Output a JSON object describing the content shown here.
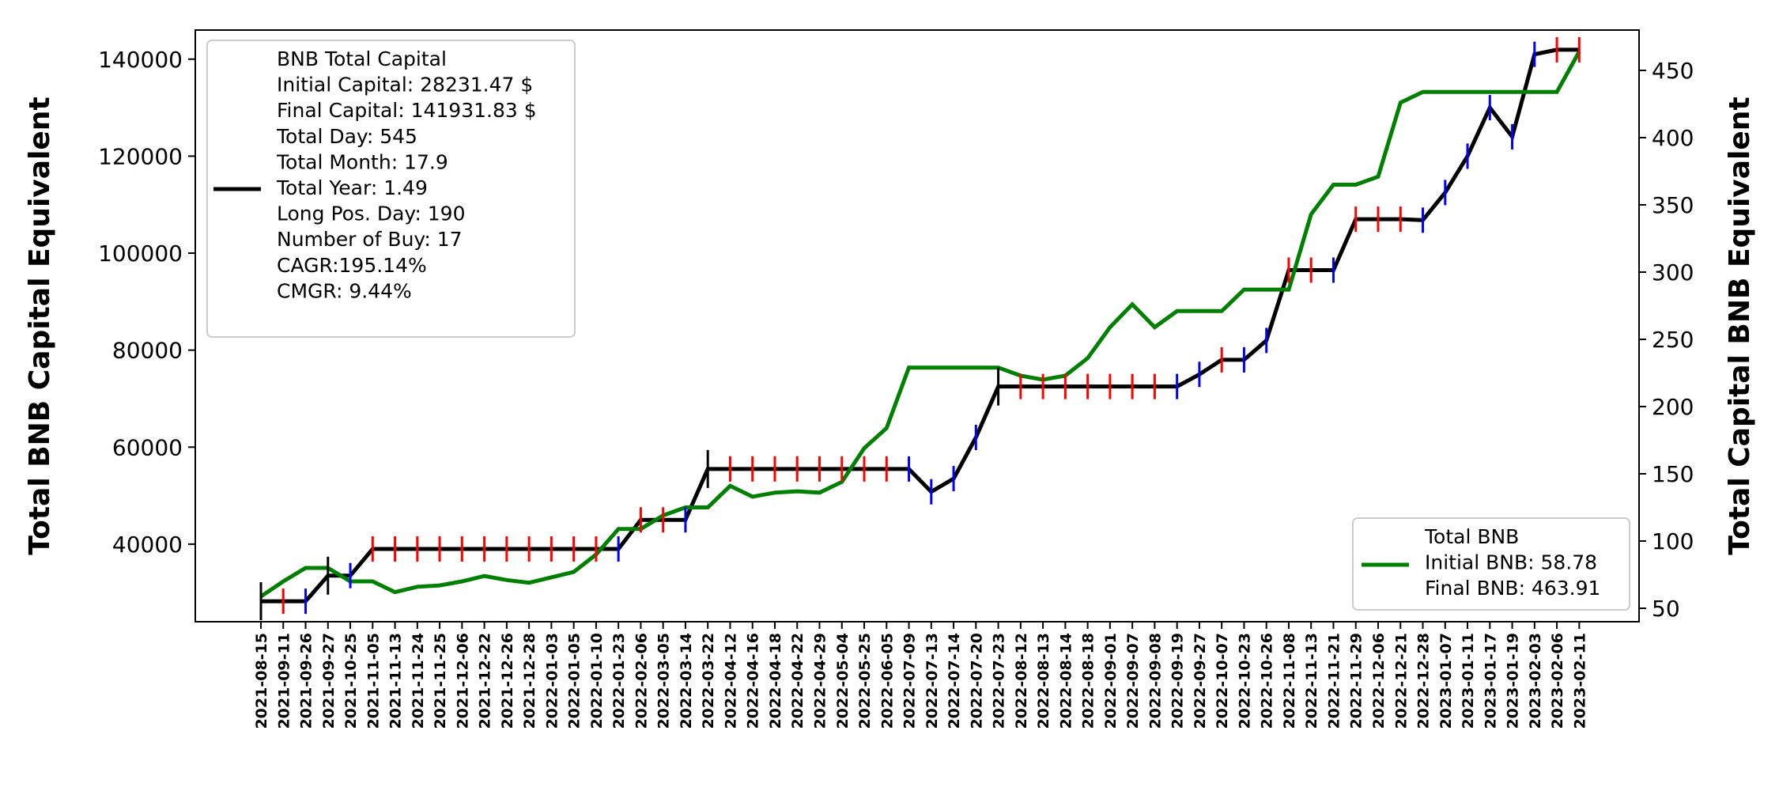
{
  "chart_data": {
    "type": "line",
    "x": [
      "2021-08-15",
      "2021-09-11",
      "2021-09-26",
      "2021-09-27",
      "2021-10-25",
      "2021-11-05",
      "2021-11-13",
      "2021-11-24",
      "2021-11-25",
      "2021-12-06",
      "2021-12-22",
      "2021-12-26",
      "2021-12-28",
      "2022-01-03",
      "2022-01-05",
      "2022-01-10",
      "2022-01-23",
      "2022-02-06",
      "2022-03-05",
      "2022-03-14",
      "2022-03-22",
      "2022-04-12",
      "2022-04-16",
      "2022-04-18",
      "2022-04-22",
      "2022-04-29",
      "2022-05-04",
      "2022-05-25",
      "2022-06-05",
      "2022-07-09",
      "2022-07-13",
      "2022-07-14",
      "2022-07-20",
      "2022-07-23",
      "2022-08-12",
      "2022-08-13",
      "2022-08-14",
      "2022-08-18",
      "2022-09-01",
      "2022-09-07",
      "2022-09-08",
      "2022-09-19",
      "2022-09-27",
      "2022-10-07",
      "2022-10-23",
      "2022-10-26",
      "2022-11-08",
      "2022-11-13",
      "2022-11-21",
      "2022-11-29",
      "2022-12-06",
      "2022-12-21",
      "2022-12-28",
      "2023-01-07",
      "2023-01-11",
      "2023-01-17",
      "2023-01-19",
      "2023-02-03",
      "2023-02-06",
      "2023-02-11"
    ],
    "series": [
      {
        "name": "BNB Total Capital",
        "axis": "left",
        "color": "#000000",
        "values": [
          28231,
          28231,
          28231,
          33500,
          33500,
          39000,
          39000,
          39000,
          39000,
          39000,
          39000,
          39000,
          39000,
          39000,
          39000,
          39000,
          39000,
          45000,
          45000,
          45000,
          55500,
          55500,
          55500,
          55500,
          55500,
          55500,
          55500,
          55500,
          55500,
          55500,
          50800,
          53500,
          62000,
          72500,
          72500,
          72500,
          72500,
          72500,
          72500,
          72500,
          72500,
          72500,
          75000,
          78000,
          78000,
          82000,
          96500,
          96500,
          96500,
          107000,
          107000,
          107000,
          106800,
          112500,
          120000,
          130000,
          124000,
          141000,
          141932,
          141932
        ],
        "markers": [
          "black",
          "red",
          "blue",
          "black",
          "blue",
          "red",
          "red",
          "red",
          "red",
          "red",
          "red",
          "red",
          "red",
          "red",
          "red",
          "red",
          "blue",
          "red",
          "red",
          "blue",
          "black",
          "red",
          "red",
          "red",
          "red",
          "red",
          "red",
          "red",
          "red",
          "blue",
          "blue",
          "blue",
          "blue",
          "black",
          "red",
          "red",
          "red",
          "red",
          "red",
          "red",
          "red",
          "blue",
          "blue",
          "red",
          "blue",
          "blue",
          "red",
          "red",
          "blue",
          "red",
          "red",
          "red",
          "blue",
          "blue",
          "blue",
          "blue",
          "blue",
          "blue",
          "red",
          "red"
        ]
      },
      {
        "name": "Total BNB",
        "axis": "right",
        "color": "#008000",
        "values": [
          58.78,
          70,
          80,
          80,
          70,
          70,
          62,
          66,
          67,
          70,
          74,
          71,
          69,
          73,
          77,
          90,
          109,
          109,
          119,
          125,
          125,
          141,
          133,
          136,
          137,
          136,
          144,
          169,
          184,
          229,
          229,
          229,
          229,
          229,
          223,
          220,
          223,
          236,
          259,
          276,
          259,
          271,
          271,
          271,
          287,
          287,
          287,
          343,
          365,
          365,
          371,
          426,
          434,
          434,
          434,
          434,
          434,
          434,
          434,
          463.91
        ]
      }
    ],
    "left_axis": {
      "label": "Total BNB Capital Equivalent",
      "ylim": [
        24000,
        146000
      ],
      "ticks": [
        40000,
        60000,
        80000,
        100000,
        120000,
        140000
      ]
    },
    "right_axis": {
      "label": "Total Capital BNB Equivalent",
      "ylim": [
        40,
        480
      ],
      "ticks": [
        50,
        100,
        150,
        200,
        250,
        300,
        350,
        400,
        450
      ]
    },
    "legend_left": {
      "placement": "upper-left",
      "lines": [
        "BNB Total Capital",
        "Initial Capital: 28231.47 $",
        "Final Capital: 141931.83 $",
        "Total Day: 545",
        "Total Month: 17.9",
        "Total Year: 1.49",
        "Long Pos. Day: 190",
        "Number of Buy: 17",
        "CAGR:195.14%",
        "CMGR: 9.44%"
      ]
    },
    "legend_right": {
      "placement": "lower-right",
      "lines": [
        "Total BNB",
        "Initial BNB: 58.78",
        "Final BNB: 463.91"
      ]
    },
    "marker_colors": {
      "black": "#000000",
      "red": "#ff0000",
      "blue": "#0000ff"
    },
    "grid": false
  }
}
